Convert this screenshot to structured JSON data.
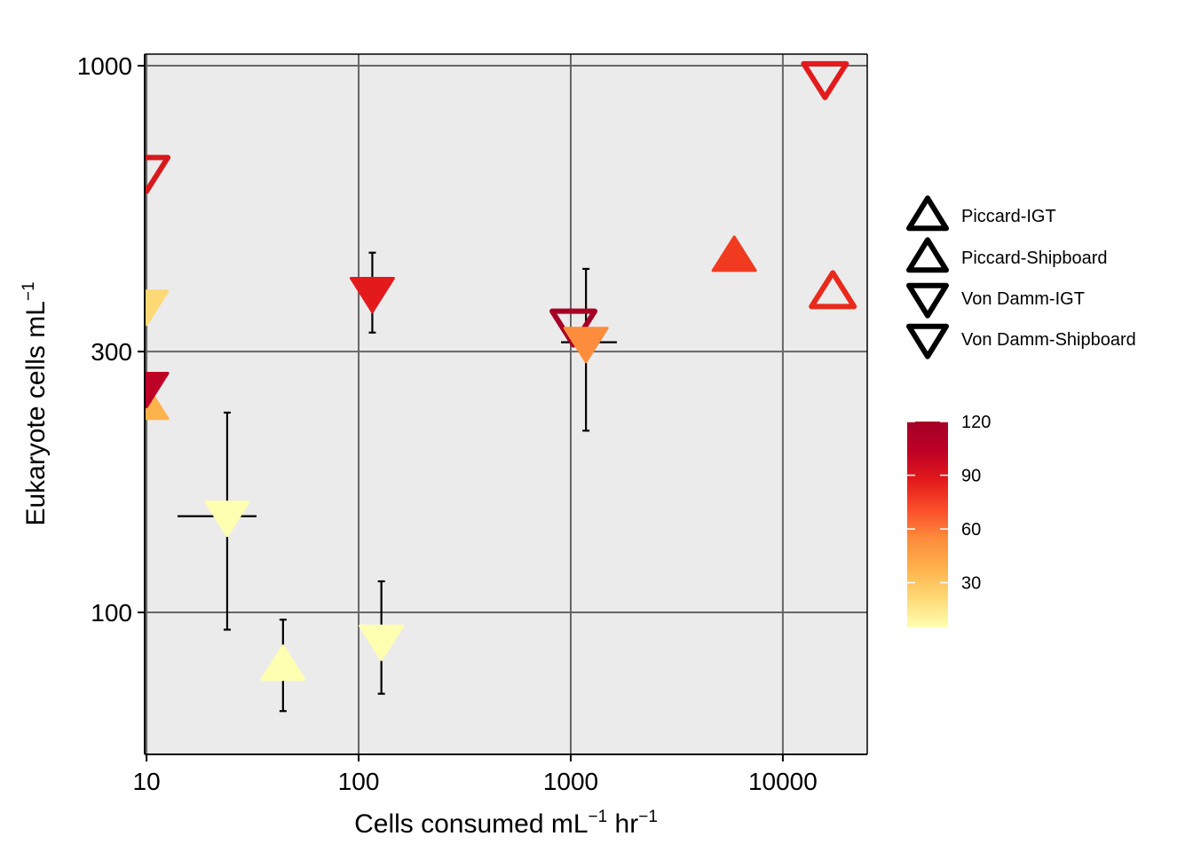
{
  "chart_data": {
    "type": "scatter",
    "title": "",
    "xlabel": {
      "base": "Cells consumed  mL",
      "sup1": "−1",
      "mid": " hr",
      "sup2": "−1"
    },
    "ylabel": {
      "base": "Eukaryote cells  mL",
      "sup": "−1"
    },
    "x_scale": "log10",
    "y_scale": "log10",
    "xlim": [
      9.8,
      25000
    ],
    "ylim": [
      55,
      1050
    ],
    "x_ticks": [
      10,
      100,
      1000,
      10000
    ],
    "x_tick_labels": [
      "10",
      "100",
      "1000",
      "10000"
    ],
    "y_ticks": [
      100,
      300,
      1000
    ],
    "y_tick_labels": [
      "100",
      "300",
      "1000"
    ],
    "grid": true,
    "legend_shape": {
      "position": "right",
      "entries": [
        {
          "label": "Piccard-IGT",
          "shape": "triangle-up-open"
        },
        {
          "label": "Piccard-Shipboard",
          "shape": "triangle-up-open"
        },
        {
          "label": "Von Damm-IGT",
          "shape": "triangle-down-open"
        },
        {
          "label": "Von Damm-Shipboard",
          "shape": "triangle-down-open"
        }
      ]
    },
    "colorbar": {
      "min": 5,
      "max": 120,
      "ticks": [
        30,
        60,
        90,
        120
      ],
      "tick_labels": [
        "30",
        "60",
        "90",
        "120"
      ],
      "stops": [
        "#ffffb2",
        "#fed976",
        "#feb24c",
        "#fd8d3c",
        "#fc4e2a",
        "#e31a1c",
        "#bd0026",
        "#a50026"
      ]
    },
    "points": [
      {
        "x": 10,
        "y": 640,
        "shape": "down",
        "filled": false,
        "color": "#d7191c",
        "xerr": null,
        "yerr": null
      },
      {
        "x": 10,
        "y": 365,
        "shape": "down",
        "filled": true,
        "color": "#fed976",
        "xerr": null,
        "yerr": null
      },
      {
        "x": 10,
        "y": 240,
        "shape": "up",
        "filled": true,
        "color": "#feb24c",
        "xerr": null,
        "yerr": null
      },
      {
        "x": 10,
        "y": 258,
        "shape": "down",
        "filled": true,
        "color": "#bd0026",
        "xerr": null,
        "yerr": null
      },
      {
        "x": 24,
        "y": 150,
        "shape": "down",
        "filled": true,
        "color": "#ffffb2",
        "xerr": [
          14,
          33
        ],
        "yerr": [
          93,
          232
        ]
      },
      {
        "x": 44,
        "y": 80,
        "shape": "up",
        "filled": true,
        "color": "#ffffb2",
        "xerr": [
          40,
          48
        ],
        "yerr": [
          66,
          97
        ]
      },
      {
        "x": 116,
        "y": 385,
        "shape": "down",
        "filled": true,
        "color": "#e31a1c",
        "xerr": [
          108,
          124
        ],
        "yerr": [
          325,
          455
        ]
      },
      {
        "x": 128,
        "y": 89,
        "shape": "down",
        "filled": true,
        "color": "#ffffb2",
        "xerr": [
          117,
          140
        ],
        "yerr": [
          71,
          114
        ]
      },
      {
        "x": 1030,
        "y": 335,
        "shape": "down",
        "filled": false,
        "color": "#a50026",
        "xerr": null,
        "yerr": null
      },
      {
        "x": 1180,
        "y": 312,
        "shape": "down",
        "filled": true,
        "color": "#fd8d3c",
        "xerr": [
          900,
          1650
        ],
        "yerr": [
          215,
          425
        ]
      },
      {
        "x": 5900,
        "y": 448,
        "shape": "up",
        "filled": true,
        "color": "#f03b20",
        "xerr": null,
        "yerr": null
      },
      {
        "x": 15800,
        "y": 950,
        "shape": "down",
        "filled": false,
        "color": "#e31a1c",
        "xerr": null,
        "yerr": null
      },
      {
        "x": 17200,
        "y": 385,
        "shape": "up",
        "filled": false,
        "color": "#e8291c",
        "xerr": null,
        "yerr": null
      }
    ]
  }
}
